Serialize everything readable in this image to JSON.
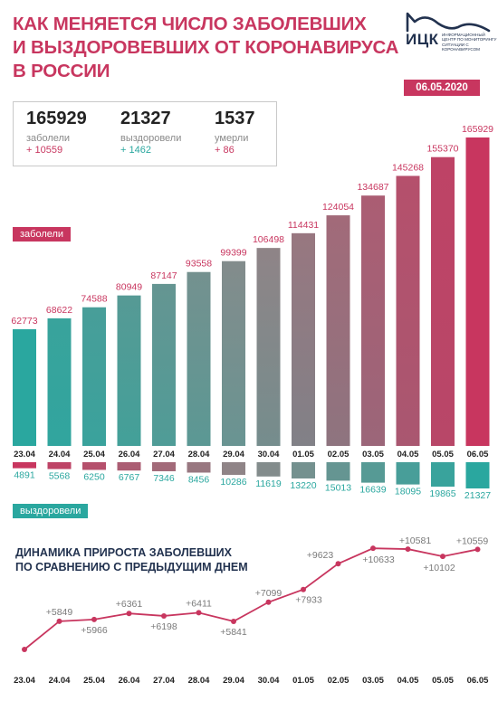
{
  "header": {
    "title_lines": [
      "КАК МЕНЯЕТСЯ ЧИСЛО ЗАБОЛЕВШИХ",
      "И ВЫЗДОРОВЕВШИХ ОТ КОРОНАВИРУСА",
      "В РОССИИ"
    ],
    "date": "06.05.2020"
  },
  "logo": {
    "abbr": "ИЦК",
    "subtitle": "ИНФОРМАЦИОННЫЙ ЦЕНТР ПО МОНИТОРИНГУ СИТУАЦИИ С КОРОНАВИРУСОМ"
  },
  "summary": [
    {
      "value": "165929",
      "label": "заболели",
      "delta": "+ 10559"
    },
    {
      "value": "21327",
      "label": "выздоровели",
      "delta": "+ 1462"
    },
    {
      "value": "1537",
      "label": "умерли",
      "delta": "+ 86"
    }
  ],
  "legend": {
    "cases_label": "заболели",
    "recovered_label": "выздоровели"
  },
  "growth_title": [
    "ДИНАМИКА ПРИРОСТА ЗАБОЛЕВШИХ",
    "ПО СРАВНЕНИЮ С ПРЕДЫДУЩИМ ДНЕМ"
  ],
  "colors": {
    "accent": "#c8365f",
    "teal": "#2aa79f",
    "navy": "#22324f",
    "gray": "#8a8a8a"
  },
  "chart_data": [
    {
      "type": "bar",
      "categories": [
        "23.04",
        "24.04",
        "25.04",
        "26.04",
        "27.04",
        "28.04",
        "29.04",
        "30.04",
        "01.05",
        "02.05",
        "03.05",
        "04.05",
        "05.05",
        "06.05"
      ],
      "series": [
        {
          "name": "заболели",
          "values": [
            62773,
            68622,
            74588,
            80949,
            87147,
            93558,
            99399,
            106498,
            114431,
            124054,
            134687,
            145268,
            155370,
            165929
          ]
        },
        {
          "name": "выздоровели",
          "values": [
            4891,
            5568,
            6250,
            6767,
            7346,
            8456,
            10286,
            11619,
            13220,
            15013,
            16639,
            18095,
            19865,
            21327
          ]
        }
      ]
    },
    {
      "type": "line",
      "x": [
        "23.04",
        "24.04",
        "25.04",
        "26.04",
        "27.04",
        "28.04",
        "29.04",
        "30.04",
        "01.05",
        "02.05",
        "03.05",
        "04.05",
        "05.05",
        "06.05"
      ],
      "values": [
        null,
        5849,
        5966,
        6361,
        6198,
        6411,
        5841,
        7099,
        7933,
        9623,
        10633,
        10581,
        10102,
        10559
      ],
      "labels": [
        "",
        "+5849",
        "+5966",
        "+6361",
        "+6198",
        "+6411",
        "+5841",
        "+7099",
        "+7933",
        "+9623",
        "+10633",
        "+10581",
        "+10102",
        "+10559"
      ],
      "title": "ДИНАМИКА ПРИРОСТА ЗАБОЛЕВШИХ ПО СРАВНЕНИЮ С ПРЕДЫДУЩИМ ДНЕМ"
    }
  ]
}
